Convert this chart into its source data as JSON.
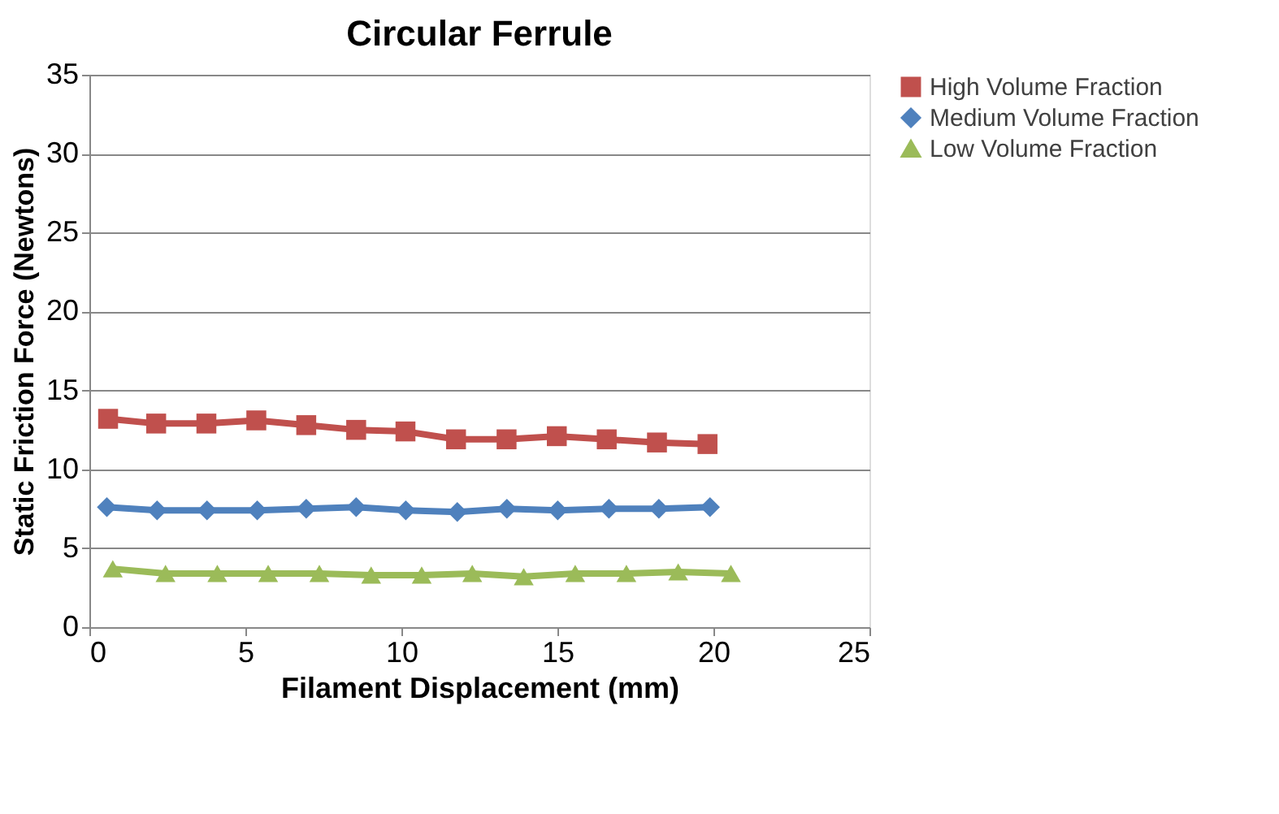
{
  "chart_data": {
    "type": "line",
    "title": "Circular Ferrule",
    "xlabel": "Filament Displacement (mm)",
    "ylabel": "Static Friction Force (Newtons)",
    "xlim": [
      0,
      25
    ],
    "xticks": [
      0,
      5,
      10,
      15,
      20,
      25
    ],
    "ylim": [
      0,
      35
    ],
    "yticks": [
      0,
      5,
      10,
      15,
      20,
      25,
      30,
      35
    ],
    "grid": "y",
    "legend": "right",
    "line_style": "solid",
    "series": [
      {
        "name": "High Volume Fraction",
        "color": "#c0504d",
        "marker": "square",
        "x": [
          0.6,
          2.14,
          3.75,
          5.35,
          6.95,
          8.55,
          10.13,
          11.75,
          13.37,
          14.98,
          16.58,
          18.19,
          19.81
        ],
        "values": [
          13.2,
          12.9,
          12.9,
          13.1,
          12.8,
          12.5,
          12.4,
          11.9,
          11.9,
          12.1,
          11.9,
          11.7,
          11.6
        ]
      },
      {
        "name": "Medium Volume Fraction",
        "color": "#4f81bd",
        "marker": "diamond",
        "x": [
          0.56,
          2.17,
          3.77,
          5.38,
          6.95,
          8.55,
          10.14,
          11.79,
          13.38,
          15.01,
          16.65,
          18.25,
          19.89
        ],
        "values": [
          7.6,
          7.4,
          7.4,
          7.4,
          7.5,
          7.6,
          7.4,
          7.3,
          7.5,
          7.4,
          7.5,
          7.5,
          7.6
        ]
      },
      {
        "name": "Low Volume Fraction",
        "color": "#9bbb59",
        "marker": "triangle",
        "x": [
          0.75,
          2.44,
          4.1,
          5.73,
          7.37,
          9.03,
          10.65,
          12.27,
          13.92,
          15.57,
          17.21,
          18.87,
          20.56
        ],
        "values": [
          3.7,
          3.4,
          3.4,
          3.4,
          3.4,
          3.3,
          3.3,
          3.4,
          3.2,
          3.4,
          3.4,
          3.5,
          3.4
        ]
      }
    ]
  }
}
